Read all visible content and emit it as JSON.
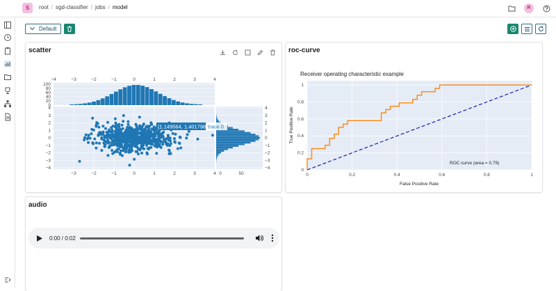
{
  "header": {
    "project_initial": "S",
    "breadcrumbs": [
      "root",
      "sgd-classifier",
      "jobs",
      "model"
    ],
    "user_initial": "R"
  },
  "toolbar": {
    "layout_label": "Default"
  },
  "panels": {
    "scatter": {
      "title": "scatter",
      "hover_label": "(1.149564, 1.401798)",
      "hover_trace": "trace 0",
      "top_x_ticks": [
        "−4",
        "−3",
        "−2",
        "−1",
        "0",
        "1",
        "2",
        "3",
        "4"
      ],
      "top_y_ticks": [
        "100",
        "80",
        "60",
        "40",
        "20",
        "0"
      ],
      "main_x_ticks": [
        "−3",
        "−2",
        "−1",
        "0",
        "1",
        "2",
        "3",
        "4"
      ],
      "main_y_ticks": [
        "4",
        "3",
        "2",
        "1",
        "0",
        "−1",
        "−2",
        "−3",
        "−4"
      ],
      "right_y_ticks": [
        "4",
        "3",
        "2",
        "1",
        "0",
        "−1",
        "−2",
        "−3",
        "−4"
      ],
      "right_x_ticks": [
        "0",
        "50"
      ]
    },
    "roc": {
      "title": "roc-curve"
    },
    "audio": {
      "title": "audio",
      "time": "0:00 / 0:02"
    }
  },
  "colors": {
    "accent": "#1a8770",
    "scatter": "#1f77b4",
    "roc": "#ff8c1a",
    "diag": "#2a2ab0",
    "plot_bg": "#e5ecf6"
  },
  "chart_data": [
    {
      "type": "line",
      "title": "Receiver operating characteristic example",
      "xlabel": "False Positive Rate",
      "ylabel": "True Positive Rate",
      "xlim": [
        0,
        1
      ],
      "ylim": [
        0,
        1.05
      ],
      "x_ticks": [
        "0",
        "0.2",
        "0.4",
        "0.6",
        "0.8",
        "1"
      ],
      "y_ticks": [
        "0",
        "0.2",
        "0.4",
        "0.6",
        "0.8",
        "1"
      ],
      "annotation": "ROC curve (area = 0.79)",
      "series": [
        {
          "points": [
            [
              0,
              0
            ],
            [
              0,
              0.13
            ],
            [
              0.02,
              0.13
            ],
            [
              0.02,
              0.25
            ],
            [
              0.08,
              0.25
            ],
            [
              0.08,
              0.29
            ],
            [
              0.1,
              0.29
            ],
            [
              0.1,
              0.37
            ],
            [
              0.12,
              0.37
            ],
            [
              0.12,
              0.42
            ],
            [
              0.14,
              0.42
            ],
            [
              0.14,
              0.5
            ],
            [
              0.16,
              0.5
            ],
            [
              0.16,
              0.54
            ],
            [
              0.18,
              0.54
            ],
            [
              0.18,
              0.58
            ],
            [
              0.33,
              0.58
            ],
            [
              0.33,
              0.67
            ],
            [
              0.35,
              0.67
            ],
            [
              0.35,
              0.71
            ],
            [
              0.37,
              0.71
            ],
            [
              0.37,
              0.75
            ],
            [
              0.41,
              0.75
            ],
            [
              0.41,
              0.79
            ],
            [
              0.47,
              0.79
            ],
            [
              0.47,
              0.83
            ],
            [
              0.49,
              0.83
            ],
            [
              0.49,
              0.88
            ],
            [
              0.51,
              0.88
            ],
            [
              0.51,
              0.92
            ],
            [
              0.57,
              0.92
            ],
            [
              0.57,
              0.96
            ],
            [
              0.59,
              0.96
            ],
            [
              0.59,
              1.0
            ],
            [
              1.0,
              1.0
            ]
          ]
        },
        {
          "points": [
            [
              0,
              0
            ],
            [
              1,
              1
            ]
          ]
        }
      ]
    }
  ]
}
